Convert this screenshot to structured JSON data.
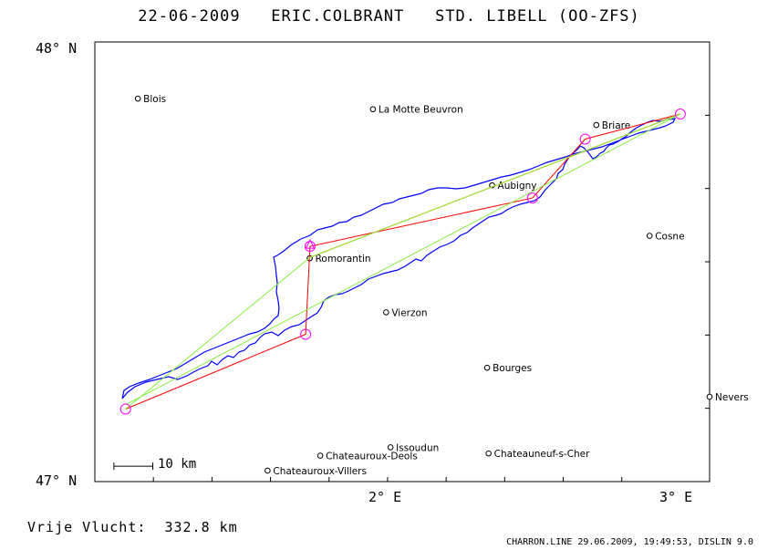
{
  "header": {
    "date": "22-06-2009",
    "pilot": "ERIC.COLBRANT",
    "glider": "STD. LIBELL (OO-ZFS)"
  },
  "axes": {
    "lat_top_label": "48° N",
    "lat_bottom_label": "47° N",
    "lon_left_label": "2° E",
    "lon_right_label": "3° E",
    "lat_range": [
      47.0,
      48.0
    ],
    "lon_range": [
      0.96,
      3.06
    ]
  },
  "towns": [
    {
      "name": "Blois",
      "lon": 1.107,
      "lat": 47.871
    },
    {
      "name": "La Motte Beuvron",
      "lon": 1.91,
      "lat": 47.847
    },
    {
      "name": "Briare",
      "lon": 2.673,
      "lat": 47.811
    },
    {
      "name": "Aubigny",
      "lon": 2.317,
      "lat": 47.674
    },
    {
      "name": "Cosne",
      "lon": 2.855,
      "lat": 47.559
    },
    {
      "name": "Romorantin",
      "lon": 1.694,
      "lat": 47.508
    },
    {
      "name": "Vierzon",
      "lon": 1.955,
      "lat": 47.385
    },
    {
      "name": "Bourges",
      "lon": 2.3,
      "lat": 47.259
    },
    {
      "name": "Nevers",
      "lon": 3.06,
      "lat": 47.193
    },
    {
      "name": "Issoudun",
      "lon": 1.97,
      "lat": 47.078
    },
    {
      "name": "Chateauroux-Deols",
      "lon": 1.73,
      "lat": 47.059
    },
    {
      "name": "Chateauneuf-s-Cher",
      "lon": 2.305,
      "lat": 47.064
    },
    {
      "name": "Chateauroux-Villers",
      "lon": 1.55,
      "lat": 47.025
    }
  ],
  "turnpoints": [
    {
      "lon": 1.065,
      "lat": 47.165
    },
    {
      "lon": 1.68,
      "lat": 47.335
    },
    {
      "lon": 1.695,
      "lat": 47.535
    },
    {
      "lon": 2.455,
      "lat": 47.645
    },
    {
      "lon": 2.635,
      "lat": 47.779
    },
    {
      "lon": 2.96,
      "lat": 47.836
    }
  ],
  "legs": {
    "red": [
      [
        1.065,
        47.165
      ],
      [
        1.68,
        47.335
      ],
      [
        1.695,
        47.535
      ],
      [
        2.455,
        47.645
      ],
      [
        2.635,
        47.779
      ],
      [
        2.96,
        47.836
      ]
    ],
    "orange": [
      [
        1.695,
        47.51
      ],
      [
        2.96,
        47.836
      ]
    ],
    "green": [
      [
        1.065,
        47.165
      ],
      [
        1.695,
        47.51
      ],
      [
        2.96,
        47.836
      ],
      [
        1.065,
        47.175
      ]
    ]
  },
  "scale": {
    "label": "10 km",
    "lon_start": 1.025,
    "lon_end": 1.158,
    "lat": 47.035
  },
  "distance_label": "Vrije Vlucht:  332.8 km",
  "footer": "CHARRON.LINE 29.06.2009, 19:49:53, DISLIN 9.0",
  "colors": {
    "track": "#0000ff",
    "task": "#ff0000",
    "leg": "#ff8c00",
    "triangle": "#88ee44",
    "turnpoint": "#ff00ff"
  }
}
